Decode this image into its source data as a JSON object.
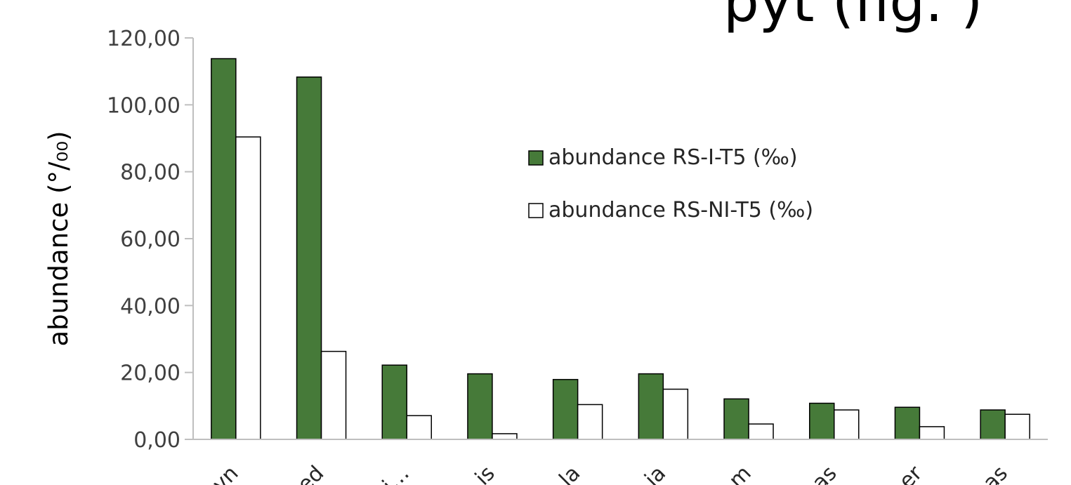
{
  "chart_data": {
    "type": "bar",
    "title": "",
    "overflow_text": "pyt (fig. )",
    "ylabel": "abundance  (°/₀₀)",
    "xlabel": "",
    "ylim": [
      0,
      120
    ],
    "yticks": [
      0,
      20,
      40,
      60,
      80,
      100,
      120
    ],
    "ytick_labels": [
      "0,00",
      "20,00",
      "40,00",
      "60,00",
      "80,00",
      "100,00",
      "120,00"
    ],
    "categories": [
      "vn",
      "ed",
      "ri…",
      "is",
      "la",
      "ia",
      "m",
      "as",
      "er",
      "as"
    ],
    "series": [
      {
        "name": "abundance RS-I-T5 (‰)",
        "color": "#467a39",
        "values": [
          113.8,
          108.3,
          22.2,
          19.6,
          17.9,
          19.6,
          12.1,
          10.8,
          9.6,
          8.8
        ]
      },
      {
        "name": "abundance RS-NI-T5 (‰)",
        "color": "#ffffff",
        "values": [
          90.4,
          26.3,
          7.1,
          1.7,
          10.4,
          15.0,
          4.6,
          8.8,
          3.8,
          7.5
        ]
      }
    ],
    "legend_position": "top-right",
    "grid": false
  }
}
